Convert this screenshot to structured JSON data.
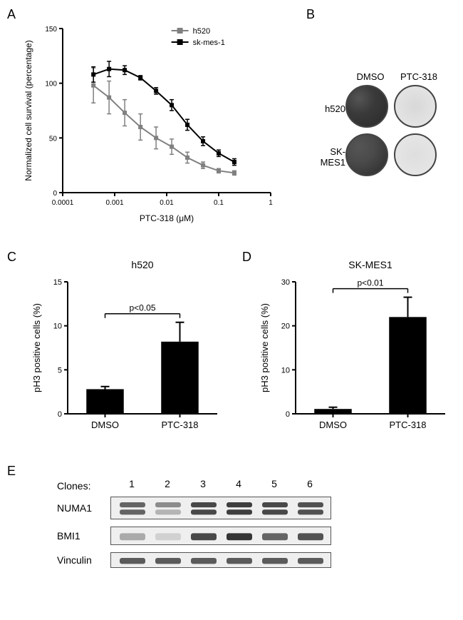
{
  "panelA": {
    "label": "A",
    "type": "line",
    "title": "",
    "xlabel": "PTC-318 (μM)",
    "ylabel": "Normalized cell survival (percentage)",
    "xscale": "log",
    "xlim": [
      0.0001,
      1
    ],
    "ylim": [
      0,
      150
    ],
    "ytick_step": 50,
    "xticks": [
      0.0001,
      0.001,
      0.01,
      0.1,
      1
    ],
    "xtick_labels": [
      "0.0001",
      "0.001",
      "0.01",
      "0.1",
      "1"
    ],
    "yticks": [
      0,
      50,
      100,
      150
    ],
    "label_fontsize": 12,
    "tick_fontsize": 10,
    "legend": [
      {
        "label": "h520",
        "color": "#808080",
        "marker": "square"
      },
      {
        "label": "sk-mes-1",
        "color": "#000000",
        "marker": "square"
      }
    ],
    "series": [
      {
        "name": "h520",
        "color": "#808080",
        "line_width": 2,
        "marker": "square",
        "x": [
          0.00039,
          0.00078,
          0.00156,
          0.00313,
          0.00625,
          0.0125,
          0.025,
          0.05,
          0.1,
          0.2
        ],
        "y": [
          98,
          87,
          73,
          60,
          50,
          42,
          32,
          25,
          20,
          18
        ],
        "err": [
          16,
          15,
          12,
          12,
          10,
          7,
          5,
          3,
          2,
          2
        ]
      },
      {
        "name": "sk-mes-1",
        "color": "#000000",
        "line_width": 2,
        "marker": "square",
        "x": [
          0.00039,
          0.00078,
          0.00156,
          0.00313,
          0.00625,
          0.0125,
          0.025,
          0.05,
          0.1,
          0.2
        ],
        "y": [
          108,
          113,
          112,
          105,
          93,
          80,
          62,
          47,
          36,
          28
        ],
        "err": [
          7,
          7,
          4,
          2,
          3,
          5,
          5,
          4,
          3,
          3
        ]
      }
    ],
    "background_color": "#ffffff",
    "axis_color": "#000000"
  },
  "panelB": {
    "label": "B",
    "col_headers": [
      "DMSO",
      "PTC-318"
    ],
    "row_headers": [
      "h520",
      "SK-MES1"
    ],
    "wells": [
      [
        {
          "fill": "#3a3a3a",
          "texture": "dense"
        },
        {
          "fill": "#d8d8d8",
          "texture": "sparse"
        }
      ],
      [
        {
          "fill": "#4a4a4a",
          "texture": "dense"
        },
        {
          "fill": "#dedede",
          "texture": "sparse"
        }
      ]
    ],
    "border_color": "#444444",
    "label_fontsize": 13
  },
  "panelC": {
    "label": "C",
    "type": "bar",
    "title": "h520",
    "title_fontsize": 14,
    "ylabel": "pH3 positive cells (%)",
    "ylim": [
      0,
      15
    ],
    "yticks": [
      0,
      5,
      10,
      15
    ],
    "categories": [
      "DMSO",
      "PTC-318"
    ],
    "values": [
      2.8,
      8.2
    ],
    "errors": [
      0.3,
      2.2
    ],
    "bar_color": "#000000",
    "bar_width": 0.5,
    "p_text": "p<0.05",
    "background_color": "#ffffff",
    "axis_color": "#000000",
    "label_fontsize": 13,
    "tick_fontsize": 11
  },
  "panelD": {
    "label": "D",
    "type": "bar",
    "title": "SK-MES1",
    "title_fontsize": 14,
    "ylabel": "pH3 positive cells (%)",
    "ylim": [
      0,
      30
    ],
    "yticks": [
      0,
      10,
      20,
      30
    ],
    "categories": [
      "DMSO",
      "PTC-318"
    ],
    "values": [
      1.1,
      22
    ],
    "errors": [
      0.4,
      4.5
    ],
    "bar_color": "#000000",
    "bar_width": 0.5,
    "p_text": "p<0.01",
    "background_color": "#ffffff",
    "axis_color": "#000000",
    "label_fontsize": 13,
    "tick_fontsize": 11
  },
  "panelE": {
    "label": "E",
    "clone_label": "Clones:",
    "lanes": [
      "1",
      "2",
      "3",
      "4",
      "5",
      "6"
    ],
    "rows": [
      {
        "label": "NUMA1",
        "bands": [
          {
            "top_intensity": 0.7,
            "bottom_intensity": 0.7
          },
          {
            "top_intensity": 0.5,
            "bottom_intensity": 0.3
          },
          {
            "top_intensity": 0.85,
            "bottom_intensity": 0.85
          },
          {
            "top_intensity": 0.9,
            "bottom_intensity": 0.9
          },
          {
            "top_intensity": 0.85,
            "bottom_intensity": 0.85
          },
          {
            "top_intensity": 0.8,
            "bottom_intensity": 0.8
          }
        ],
        "doublet": true,
        "height": 32
      },
      {
        "label": "BMI1",
        "bands": [
          {
            "intensity": 0.35
          },
          {
            "intensity": 0.15
          },
          {
            "intensity": 0.85
          },
          {
            "intensity": 0.95
          },
          {
            "intensity": 0.7
          },
          {
            "intensity": 0.8
          }
        ],
        "doublet": false,
        "height": 26
      },
      {
        "label": "Vinculin",
        "bands": [
          {
            "intensity": 0.75
          },
          {
            "intensity": 0.75
          },
          {
            "intensity": 0.75
          },
          {
            "intensity": 0.75
          },
          {
            "intensity": 0.75
          },
          {
            "intensity": 0.75
          }
        ],
        "doublet": false,
        "height": 22
      }
    ],
    "lane_width": 50,
    "band_color": "#2a2a2a",
    "background": "#efefef",
    "border_color": "#555555",
    "label_fontsize": 14
  }
}
